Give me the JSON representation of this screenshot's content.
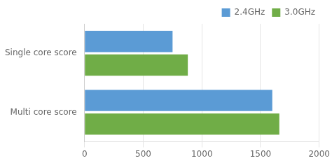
{
  "chart_data": {
    "type": "bar",
    "orientation": "horizontal",
    "categories": [
      "Single core score",
      "Multi core score"
    ],
    "series": [
      {
        "name": "2.4GHz",
        "color": "#5b9bd5",
        "values": [
          750,
          1600
        ]
      },
      {
        "name": "3.0GHz",
        "color": "#70ad47",
        "values": [
          880,
          1660
        ]
      }
    ],
    "xlim": [
      0,
      2000
    ],
    "xticks": [
      0,
      500,
      1000,
      1500,
      2000
    ],
    "grid": "x",
    "legend": "upper right"
  }
}
